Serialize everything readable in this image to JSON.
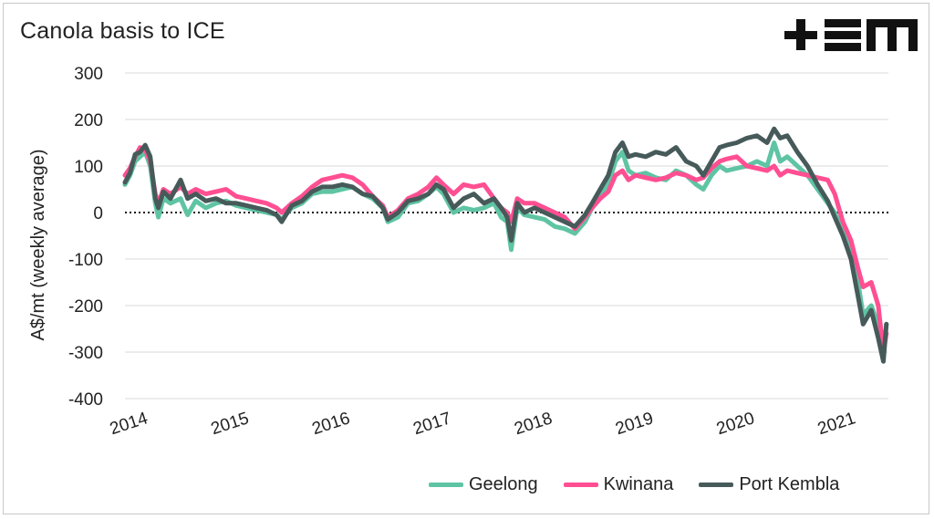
{
  "title": "Canola basis to ICE",
  "logo_text": "+EM",
  "chart_data": {
    "type": "line",
    "title": "Canola basis to ICE",
    "ylabel": "A$/mt (weekly average)",
    "xlabel": "",
    "ylim": [
      -400,
      300
    ],
    "xlim": [
      2014.0,
      2021.55
    ],
    "yticks": [
      300,
      200,
      100,
      0,
      -100,
      -200,
      -300,
      -400
    ],
    "xticks": [
      "2014",
      "2015",
      "2016",
      "2017",
      "2018",
      "2019",
      "2020",
      "2021"
    ],
    "grid": "horizontal",
    "zero_line": "dotted",
    "legend": "bottom-right",
    "series": [
      {
        "name": "Geelong",
        "color": "#5fc4a3",
        "points": [
          [
            2014.0,
            60
          ],
          [
            2014.05,
            80
          ],
          [
            2014.1,
            110
          ],
          [
            2014.15,
            120
          ],
          [
            2014.2,
            130
          ],
          [
            2014.25,
            100
          ],
          [
            2014.3,
            20
          ],
          [
            2014.33,
            -10
          ],
          [
            2014.38,
            30
          ],
          [
            2014.45,
            20
          ],
          [
            2014.55,
            30
          ],
          [
            2014.62,
            -5
          ],
          [
            2014.7,
            25
          ],
          [
            2014.8,
            10
          ],
          [
            2014.9,
            20
          ],
          [
            2015.0,
            25
          ],
          [
            2015.1,
            15
          ],
          [
            2015.2,
            10
          ],
          [
            2015.3,
            5
          ],
          [
            2015.4,
            0
          ],
          [
            2015.5,
            -5
          ],
          [
            2015.55,
            -15
          ],
          [
            2015.65,
            10
          ],
          [
            2015.75,
            20
          ],
          [
            2015.85,
            40
          ],
          [
            2015.95,
            45
          ],
          [
            2016.05,
            45
          ],
          [
            2016.15,
            50
          ],
          [
            2016.25,
            55
          ],
          [
            2016.35,
            40
          ],
          [
            2016.45,
            30
          ],
          [
            2016.55,
            10
          ],
          [
            2016.6,
            -20
          ],
          [
            2016.7,
            -10
          ],
          [
            2016.8,
            20
          ],
          [
            2016.9,
            25
          ],
          [
            2017.0,
            40
          ],
          [
            2017.08,
            55
          ],
          [
            2017.15,
            40
          ],
          [
            2017.25,
            0
          ],
          [
            2017.35,
            10
          ],
          [
            2017.45,
            5
          ],
          [
            2017.55,
            10
          ],
          [
            2017.65,
            20
          ],
          [
            2017.72,
            -10
          ],
          [
            2017.78,
            -20
          ],
          [
            2017.82,
            -80
          ],
          [
            2017.88,
            10
          ],
          [
            2017.95,
            -5
          ],
          [
            2018.05,
            -10
          ],
          [
            2018.15,
            -15
          ],
          [
            2018.25,
            -30
          ],
          [
            2018.35,
            -35
          ],
          [
            2018.45,
            -45
          ],
          [
            2018.55,
            -20
          ],
          [
            2018.62,
            10
          ],
          [
            2018.7,
            40
          ],
          [
            2018.78,
            60
          ],
          [
            2018.85,
            110
          ],
          [
            2018.92,
            130
          ],
          [
            2018.98,
            90
          ],
          [
            2019.05,
            80
          ],
          [
            2019.15,
            85
          ],
          [
            2019.25,
            75
          ],
          [
            2019.35,
            70
          ],
          [
            2019.45,
            90
          ],
          [
            2019.55,
            80
          ],
          [
            2019.65,
            60
          ],
          [
            2019.72,
            50
          ],
          [
            2019.8,
            80
          ],
          [
            2019.88,
            100
          ],
          [
            2019.95,
            90
          ],
          [
            2020.05,
            95
          ],
          [
            2020.15,
            100
          ],
          [
            2020.25,
            110
          ],
          [
            2020.35,
            100
          ],
          [
            2020.42,
            150
          ],
          [
            2020.48,
            110
          ],
          [
            2020.55,
            120
          ],
          [
            2020.65,
            100
          ],
          [
            2020.75,
            80
          ],
          [
            2020.85,
            50
          ],
          [
            2020.95,
            20
          ],
          [
            2021.02,
            0
          ],
          [
            2021.1,
            -40
          ],
          [
            2021.18,
            -80
          ],
          [
            2021.25,
            -150
          ],
          [
            2021.3,
            -220
          ],
          [
            2021.38,
            -200
          ],
          [
            2021.45,
            -240
          ],
          [
            2021.5,
            -300
          ],
          [
            2021.53,
            -240
          ]
        ]
      },
      {
        "name": "Kwinana",
        "color": "#ff4f92",
        "points": [
          [
            2014.0,
            80
          ],
          [
            2014.05,
            95
          ],
          [
            2014.1,
            120
          ],
          [
            2014.15,
            140
          ],
          [
            2014.2,
            135
          ],
          [
            2014.25,
            110
          ],
          [
            2014.3,
            40
          ],
          [
            2014.33,
            20
          ],
          [
            2014.38,
            50
          ],
          [
            2014.45,
            40
          ],
          [
            2014.55,
            55
          ],
          [
            2014.62,
            40
          ],
          [
            2014.7,
            50
          ],
          [
            2014.8,
            40
          ],
          [
            2014.9,
            45
          ],
          [
            2015.0,
            50
          ],
          [
            2015.1,
            35
          ],
          [
            2015.2,
            30
          ],
          [
            2015.3,
            25
          ],
          [
            2015.4,
            20
          ],
          [
            2015.5,
            10
          ],
          [
            2015.55,
            0
          ],
          [
            2015.65,
            20
          ],
          [
            2015.75,
            35
          ],
          [
            2015.85,
            55
          ],
          [
            2015.95,
            70
          ],
          [
            2016.05,
            75
          ],
          [
            2016.15,
            80
          ],
          [
            2016.25,
            75
          ],
          [
            2016.35,
            60
          ],
          [
            2016.45,
            35
          ],
          [
            2016.55,
            15
          ],
          [
            2016.6,
            -10
          ],
          [
            2016.7,
            5
          ],
          [
            2016.8,
            30
          ],
          [
            2016.9,
            40
          ],
          [
            2017.0,
            55
          ],
          [
            2017.08,
            75
          ],
          [
            2017.15,
            60
          ],
          [
            2017.25,
            40
          ],
          [
            2017.35,
            60
          ],
          [
            2017.45,
            55
          ],
          [
            2017.55,
            60
          ],
          [
            2017.65,
            30
          ],
          [
            2017.72,
            10
          ],
          [
            2017.78,
            0
          ],
          [
            2017.82,
            -20
          ],
          [
            2017.88,
            30
          ],
          [
            2017.95,
            20
          ],
          [
            2018.05,
            20
          ],
          [
            2018.15,
            10
          ],
          [
            2018.25,
            0
          ],
          [
            2018.35,
            -10
          ],
          [
            2018.45,
            -35
          ],
          [
            2018.55,
            -10
          ],
          [
            2018.62,
            10
          ],
          [
            2018.7,
            30
          ],
          [
            2018.78,
            45
          ],
          [
            2018.85,
            80
          ],
          [
            2018.92,
            90
          ],
          [
            2018.98,
            70
          ],
          [
            2019.05,
            80
          ],
          [
            2019.15,
            75
          ],
          [
            2019.25,
            70
          ],
          [
            2019.35,
            75
          ],
          [
            2019.45,
            85
          ],
          [
            2019.55,
            80
          ],
          [
            2019.65,
            70
          ],
          [
            2019.72,
            75
          ],
          [
            2019.8,
            95
          ],
          [
            2019.88,
            110
          ],
          [
            2019.95,
            115
          ],
          [
            2020.05,
            120
          ],
          [
            2020.15,
            100
          ],
          [
            2020.25,
            95
          ],
          [
            2020.35,
            90
          ],
          [
            2020.42,
            100
          ],
          [
            2020.48,
            80
          ],
          [
            2020.55,
            90
          ],
          [
            2020.65,
            85
          ],
          [
            2020.75,
            80
          ],
          [
            2020.85,
            75
          ],
          [
            2020.95,
            70
          ],
          [
            2021.02,
            40
          ],
          [
            2021.1,
            -20
          ],
          [
            2021.18,
            -60
          ],
          [
            2021.25,
            -120
          ],
          [
            2021.3,
            -160
          ],
          [
            2021.38,
            -150
          ],
          [
            2021.45,
            -200
          ],
          [
            2021.5,
            -300
          ],
          [
            2021.53,
            -260
          ]
        ]
      },
      {
        "name": "Port Kembla",
        "color": "#475a5a",
        "points": [
          [
            2014.0,
            65
          ],
          [
            2014.05,
            85
          ],
          [
            2014.1,
            125
          ],
          [
            2014.15,
            130
          ],
          [
            2014.2,
            145
          ],
          [
            2014.25,
            120
          ],
          [
            2014.3,
            30
          ],
          [
            2014.33,
            10
          ],
          [
            2014.38,
            45
          ],
          [
            2014.45,
            30
          ],
          [
            2014.55,
            70
          ],
          [
            2014.62,
            30
          ],
          [
            2014.7,
            40
          ],
          [
            2014.8,
            25
          ],
          [
            2014.9,
            30
          ],
          [
            2015.0,
            20
          ],
          [
            2015.1,
            20
          ],
          [
            2015.2,
            15
          ],
          [
            2015.3,
            10
          ],
          [
            2015.4,
            5
          ],
          [
            2015.5,
            -5
          ],
          [
            2015.55,
            -20
          ],
          [
            2015.65,
            15
          ],
          [
            2015.75,
            25
          ],
          [
            2015.85,
            45
          ],
          [
            2015.95,
            55
          ],
          [
            2016.05,
            55
          ],
          [
            2016.15,
            60
          ],
          [
            2016.25,
            55
          ],
          [
            2016.35,
            40
          ],
          [
            2016.45,
            35
          ],
          [
            2016.55,
            10
          ],
          [
            2016.6,
            -15
          ],
          [
            2016.7,
            0
          ],
          [
            2016.8,
            25
          ],
          [
            2016.9,
            30
          ],
          [
            2017.0,
            40
          ],
          [
            2017.08,
            60
          ],
          [
            2017.15,
            50
          ],
          [
            2017.25,
            10
          ],
          [
            2017.35,
            30
          ],
          [
            2017.45,
            40
          ],
          [
            2017.55,
            20
          ],
          [
            2017.65,
            30
          ],
          [
            2017.72,
            10
          ],
          [
            2017.78,
            -10
          ],
          [
            2017.82,
            -60
          ],
          [
            2017.88,
            20
          ],
          [
            2017.95,
            0
          ],
          [
            2018.05,
            10
          ],
          [
            2018.15,
            0
          ],
          [
            2018.25,
            -10
          ],
          [
            2018.35,
            -20
          ],
          [
            2018.45,
            -30
          ],
          [
            2018.55,
            -5
          ],
          [
            2018.62,
            20
          ],
          [
            2018.7,
            50
          ],
          [
            2018.78,
            80
          ],
          [
            2018.85,
            130
          ],
          [
            2018.92,
            150
          ],
          [
            2018.98,
            120
          ],
          [
            2019.05,
            125
          ],
          [
            2019.15,
            120
          ],
          [
            2019.25,
            130
          ],
          [
            2019.35,
            125
          ],
          [
            2019.45,
            140
          ],
          [
            2019.55,
            110
          ],
          [
            2019.65,
            100
          ],
          [
            2019.72,
            80
          ],
          [
            2019.8,
            110
          ],
          [
            2019.88,
            140
          ],
          [
            2019.95,
            145
          ],
          [
            2020.05,
            150
          ],
          [
            2020.15,
            160
          ],
          [
            2020.25,
            165
          ],
          [
            2020.35,
            150
          ],
          [
            2020.42,
            180
          ],
          [
            2020.48,
            160
          ],
          [
            2020.55,
            165
          ],
          [
            2020.65,
            130
          ],
          [
            2020.75,
            100
          ],
          [
            2020.85,
            60
          ],
          [
            2020.95,
            25
          ],
          [
            2021.02,
            -10
          ],
          [
            2021.1,
            -50
          ],
          [
            2021.18,
            -100
          ],
          [
            2021.25,
            -180
          ],
          [
            2021.3,
            -240
          ],
          [
            2021.38,
            -210
          ],
          [
            2021.45,
            -270
          ],
          [
            2021.5,
            -320
          ],
          [
            2021.53,
            -240
          ]
        ]
      }
    ]
  }
}
